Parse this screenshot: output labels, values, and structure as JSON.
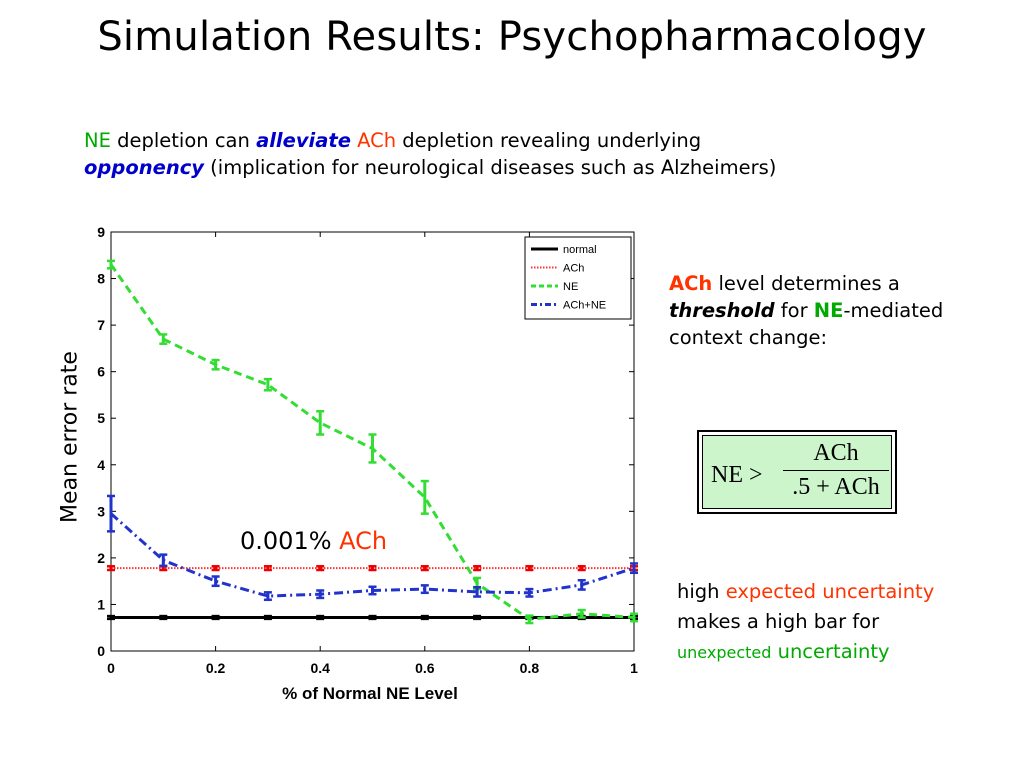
{
  "slide": {
    "title": "Simulation Results: Psychopharmacology",
    "subtitle": {
      "ne": "NE",
      "part1": " depletion can ",
      "alleviate": "alleviate",
      "ach": " ACh",
      "part2": " depletion revealing underlying",
      "opponency": "opponency",
      "part3": " (implication for neurological diseases such as Alzheimers)"
    },
    "note1": {
      "ach": "ACh",
      "part1": " level determines a",
      "threshold": "threshold",
      "part2": " for ",
      "ne": "NE",
      "part3": "-mediated context change:"
    },
    "formula": {
      "lhs": "NE >",
      "numerator": "ACh",
      "denominator": ".5 + ACh"
    },
    "note2": {
      "high": "high ",
      "expected_uncertainty": "expected uncertainty",
      "line2": "makes a high bar for",
      "unexpected": "unexpected",
      "uncertainty": " uncertainty"
    },
    "annotation": {
      "value": "0.001% ",
      "ach": "ACh"
    }
  },
  "colors": {
    "green": "#00aa00",
    "red": "#ff3300",
    "blue": "#0000cc",
    "formula_bg": "#ccf5cc"
  },
  "chart_data": {
    "type": "line",
    "xlabel": "% of Normal NE Level",
    "ylabel": "Mean error rate",
    "xlim": [
      0,
      1
    ],
    "ylim": [
      0,
      9
    ],
    "xticks": [
      "0",
      "0.2",
      "0.4",
      "0.6",
      "0.8",
      "1"
    ],
    "yticks": [
      "0",
      "1",
      "2",
      "3",
      "4",
      "5",
      "6",
      "7",
      "8",
      "9"
    ],
    "grid": false,
    "legend_position": "top-right",
    "x": [
      0,
      0.1,
      0.2,
      0.3,
      0.4,
      0.5,
      0.6,
      0.7,
      0.8,
      0.9,
      1.0
    ],
    "series": [
      {
        "name": "normal",
        "color": "#000000",
        "style": "solid",
        "values": [
          0.72,
          0.72,
          0.72,
          0.72,
          0.72,
          0.72,
          0.72,
          0.72,
          0.72,
          0.72,
          0.72
        ],
        "errors": [
          0.03,
          0.03,
          0.03,
          0.03,
          0.03,
          0.03,
          0.03,
          0.03,
          0.03,
          0.03,
          0.03
        ]
      },
      {
        "name": "ACh",
        "color": "#ff3333",
        "style": "dotted",
        "values": [
          1.78,
          1.78,
          1.78,
          1.78,
          1.78,
          1.78,
          1.78,
          1.78,
          1.78,
          1.78,
          1.78
        ],
        "errors": [
          0.04,
          0.04,
          0.04,
          0.04,
          0.04,
          0.04,
          0.04,
          0.04,
          0.04,
          0.04,
          0.04
        ]
      },
      {
        "name": "NE",
        "color": "#33dd33",
        "style": "dashed",
        "values": [
          8.3,
          6.7,
          6.15,
          5.72,
          4.9,
          4.35,
          3.3,
          1.45,
          0.68,
          0.8,
          0.72
        ],
        "errors": [
          0.08,
          0.1,
          0.1,
          0.12,
          0.25,
          0.3,
          0.35,
          0.12,
          0.08,
          0.08,
          0.08
        ]
      },
      {
        "name": "ACh+NE",
        "color": "#2233cc",
        "style": "dashdot",
        "values": [
          2.95,
          1.95,
          1.5,
          1.18,
          1.22,
          1.3,
          1.33,
          1.27,
          1.25,
          1.42,
          1.78
        ],
        "errors": [
          0.38,
          0.12,
          0.1,
          0.08,
          0.08,
          0.08,
          0.08,
          0.1,
          0.08,
          0.1,
          0.1
        ]
      }
    ]
  }
}
